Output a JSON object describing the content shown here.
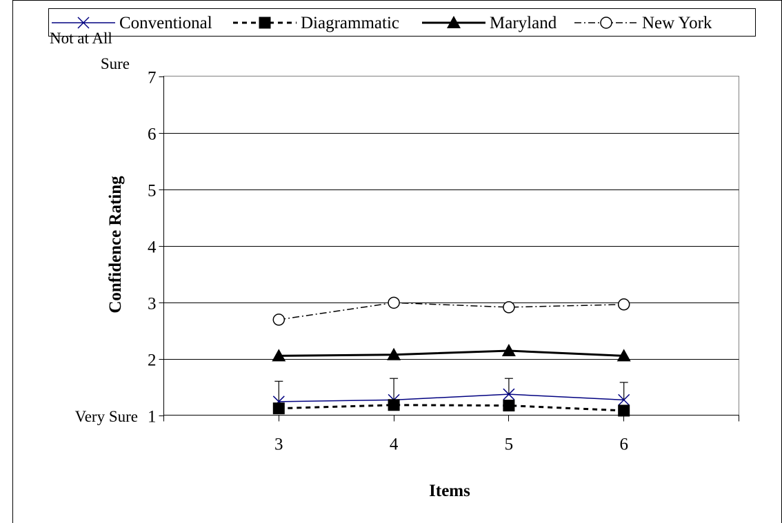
{
  "chart_data": {
    "type": "line",
    "title": "",
    "xlabel": "Items",
    "ylabel": "Confidence Rating",
    "categories": [
      "3",
      "4",
      "5",
      "6"
    ],
    "yticks": [
      "1",
      "2",
      "3",
      "4",
      "5",
      "6",
      "7"
    ],
    "ylim": [
      1,
      7
    ],
    "grid": "horizontal",
    "legend_position": "top",
    "y_end_labels": {
      "low_prefix": "Very Sure",
      "high_line1": "Not at All",
      "high_line2": "Sure"
    },
    "series": [
      {
        "name": "Conventional",
        "values": [
          1.24,
          1.27,
          1.37,
          1.27
        ],
        "error_upper": [
          1.6,
          1.65,
          1.65,
          1.58
        ],
        "color": "#000080",
        "marker": "x",
        "dash": "solid"
      },
      {
        "name": "Diagrammatic",
        "values": [
          1.12,
          1.18,
          1.17,
          1.08
        ],
        "color": "#000000",
        "marker": "square",
        "dash": "dashed"
      },
      {
        "name": "Maryland",
        "values": [
          2.05,
          2.07,
          2.14,
          2.05
        ],
        "color": "#000000",
        "marker": "triangle",
        "dash": "solid-thick"
      },
      {
        "name": "New York",
        "values": [
          2.69,
          2.99,
          2.91,
          2.96
        ],
        "color": "#000000",
        "marker": "circle",
        "dash": "dashdot"
      }
    ]
  }
}
